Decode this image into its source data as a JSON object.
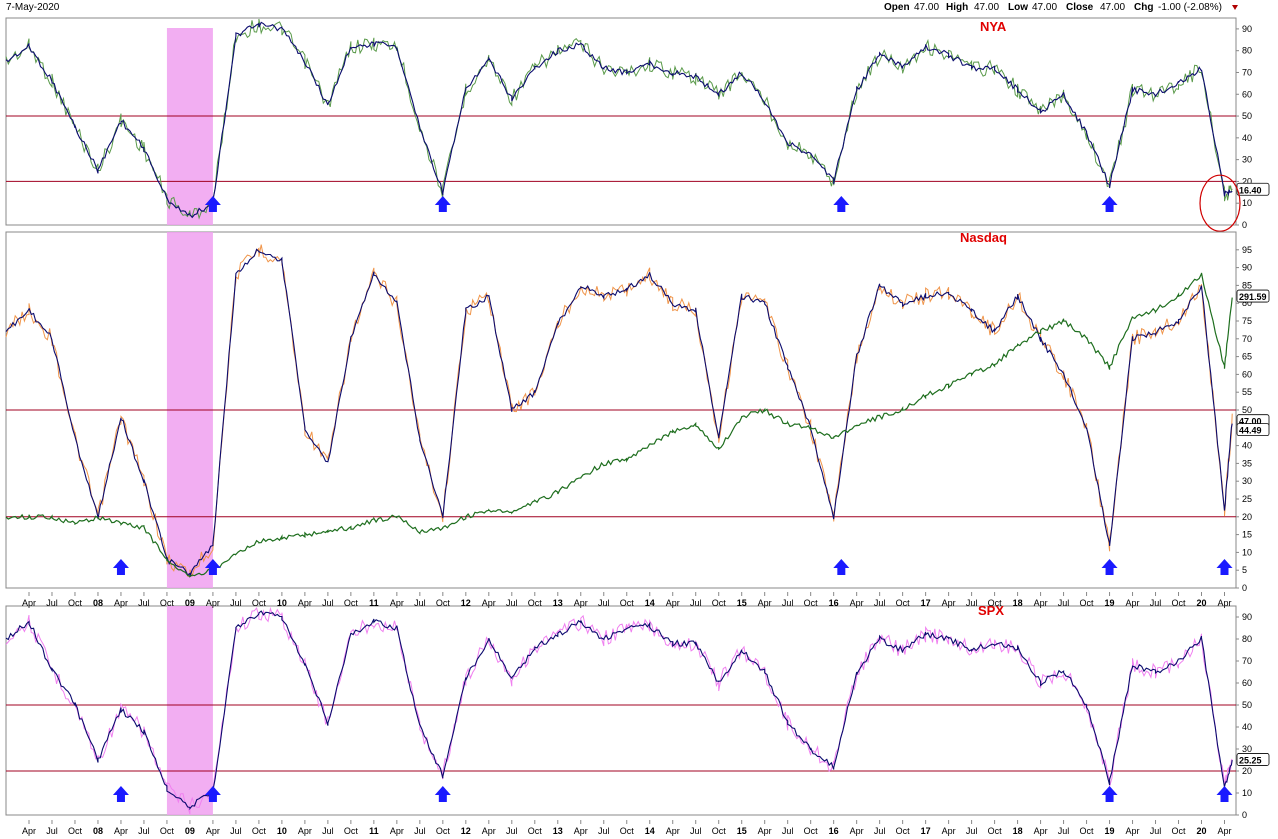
{
  "header": {
    "date": "7-May-2020",
    "open_label": "Open",
    "open_value": "47.00",
    "high_label": "High",
    "high_value": "47.00",
    "low_label": "Low",
    "low_value": "47.00",
    "close_label": "Close",
    "close_value": "47.00",
    "chg_label": "Chg",
    "chg_value": "-1.00 (-2.08%)"
  },
  "colors": {
    "navy": "#0b0b6e",
    "nya_raw": "#5a9a4a",
    "nasdaq_raw": "#f0954a",
    "spx_raw": "#f080f0",
    "comp_index": "#1e6e1e",
    "hline": "#a00020",
    "highlight": "#f0a0f0",
    "arrow": "#1a1aff",
    "title": "#e00000"
  },
  "x_axis": {
    "labels": [
      "Apr",
      "Jul",
      "Oct",
      "08",
      "Apr",
      "Jul",
      "Oct",
      "09",
      "Apr",
      "Jul",
      "Oct",
      "10",
      "Apr",
      "Jul",
      "Oct",
      "11",
      "Apr",
      "Jul",
      "Oct",
      "12",
      "Apr",
      "Jul",
      "Oct",
      "13",
      "Apr",
      "Jul",
      "Oct",
      "14",
      "Apr",
      "Jul",
      "Oct",
      "15",
      "Apr",
      "Jul",
      "Oct",
      "16",
      "Apr",
      "Jul",
      "Oct",
      "17",
      "Apr",
      "Jul",
      "Oct",
      "18",
      "Apr",
      "Jul",
      "Oct",
      "19",
      "Apr",
      "Jul",
      "Oct",
      "20",
      "Apr"
    ]
  },
  "chart_data": [
    {
      "type": "line",
      "title": "NYA",
      "ylim": [
        0,
        95
      ],
      "y_ticks": [
        "0",
        "10",
        "20",
        "30",
        "40",
        "50",
        "60",
        "70",
        "80",
        "90"
      ],
      "hlines": [
        20,
        50
      ],
      "last_value_label": "16.40",
      "highlight_range": [
        "Oct 08",
        "Apr 09"
      ],
      "buy_arrows": [
        "Apr 09",
        "Oct 11",
        "Feb 16",
        "Jan 19"
      ],
      "x": [
        "Jan 07",
        "Apr 07",
        "Jul 07",
        "Oct 07",
        "Jan 08",
        "Apr 08",
        "Jul 08",
        "Oct 08",
        "Jan 09",
        "Apr 09",
        "Jul 09",
        "Oct 09",
        "Jan 10",
        "Apr 10",
        "Jul 10",
        "Oct 10",
        "Jan 11",
        "Apr 11",
        "Jul 11",
        "Oct 11",
        "Jan 12",
        "Apr 12",
        "Jul 12",
        "Oct 12",
        "Jan 13",
        "Apr 13",
        "Jul 13",
        "Oct 13",
        "Jan 14",
        "Apr 14",
        "Jul 14",
        "Oct 14",
        "Jan 15",
        "Apr 15",
        "Jul 15",
        "Oct 15",
        "Jan 16",
        "Apr 16",
        "Jul 16",
        "Oct 16",
        "Jan 17",
        "Apr 17",
        "Jul 17",
        "Oct 17",
        "Jan 18",
        "Apr 18",
        "Jul 18",
        "Oct 18",
        "Jan 19",
        "Apr 19",
        "Jul 19",
        "Oct 19",
        "Jan 20",
        "Apr 20",
        "May 20"
      ],
      "series": [
        {
          "values": [
            75,
            82,
            66,
            45,
            25,
            48,
            35,
            12,
            4,
            10,
            87,
            92,
            90,
            75,
            55,
            82,
            83,
            82,
            45,
            15,
            62,
            76,
            58,
            72,
            80,
            83,
            72,
            70,
            74,
            70,
            68,
            60,
            70,
            57,
            38,
            32,
            20,
            62,
            78,
            73,
            82,
            78,
            72,
            72,
            62,
            52,
            60,
            42,
            18,
            62,
            60,
            65,
            72,
            14,
            16.4
          ]
        }
      ]
    },
    {
      "type": "line",
      "title": "Nasdaq",
      "ylim": [
        0,
        100
      ],
      "y_ticks": [
        "0",
        "5",
        "10",
        "15",
        "20",
        "25",
        "30",
        "35",
        "40",
        "45",
        "50",
        "55",
        "60",
        "65",
        "70",
        "75",
        "80",
        "85",
        "90",
        "95"
      ],
      "hlines": [
        20,
        50
      ],
      "last_value_label": "47.00",
      "secondary_value_label": "44.49",
      "comp_value_label": "291.59",
      "highlight_range": [
        "Oct 08",
        "Apr 09"
      ],
      "buy_arrows": [
        "Apr 08",
        "Apr 09",
        "Feb 16",
        "Jan 19",
        "Apr 20"
      ],
      "x": [
        "Jan 07",
        "Apr 07",
        "Jul 07",
        "Oct 07",
        "Jan 08",
        "Apr 08",
        "Jul 08",
        "Oct 08",
        "Jan 09",
        "Apr 09",
        "Jul 09",
        "Oct 09",
        "Jan 10",
        "Apr 10",
        "Jul 10",
        "Oct 10",
        "Jan 11",
        "Apr 11",
        "Jul 11",
        "Oct 11",
        "Jan 12",
        "Apr 12",
        "Jul 12",
        "Oct 12",
        "Jan 13",
        "Apr 13",
        "Jul 13",
        "Oct 13",
        "Jan 14",
        "Apr 14",
        "Jul 14",
        "Oct 14",
        "Jan 15",
        "Apr 15",
        "Jul 15",
        "Oct 15",
        "Jan 16",
        "Apr 16",
        "Jul 16",
        "Oct 16",
        "Jan 17",
        "Apr 17",
        "Jul 17",
        "Oct 17",
        "Jan 18",
        "Apr 18",
        "Jul 18",
        "Oct 18",
        "Jan 19",
        "Apr 19",
        "Jul 19",
        "Oct 19",
        "Jan 20",
        "Apr 20",
        "May 20"
      ],
      "series": [
        {
          "values": [
            72,
            78,
            70,
            42,
            20,
            48,
            30,
            8,
            4,
            12,
            88,
            95,
            92,
            45,
            35,
            70,
            88,
            80,
            42,
            20,
            78,
            82,
            50,
            55,
            74,
            85,
            82,
            84,
            88,
            80,
            78,
            42,
            82,
            80,
            62,
            45,
            20,
            65,
            85,
            80,
            82,
            83,
            78,
            72,
            82,
            70,
            60,
            45,
            12,
            70,
            72,
            75,
            85,
            22,
            47
          ]
        },
        {
          "values": [
            20,
            20,
            20,
            18,
            20,
            18,
            17,
            8,
            3,
            5,
            10,
            13,
            14,
            15,
            16,
            17,
            19,
            20,
            16,
            17,
            20,
            22,
            21,
            24,
            27,
            31,
            35,
            36,
            40,
            44,
            46,
            39,
            48,
            50,
            46,
            45,
            42,
            46,
            48,
            50,
            54,
            57,
            60,
            63,
            68,
            72,
            75,
            70,
            62,
            76,
            78,
            82,
            88,
            62,
            82
          ]
        }
      ]
    },
    {
      "type": "line",
      "title": "SPX",
      "ylim": [
        0,
        95
      ],
      "y_ticks": [
        "0",
        "10",
        "20",
        "30",
        "40",
        "50",
        "60",
        "70",
        "80",
        "90"
      ],
      "hlines": [
        20,
        50
      ],
      "last_value_label": "25.25",
      "highlight_range": [
        "Oct 08",
        "Apr 09"
      ],
      "buy_arrows": [
        "Apr 08",
        "Apr 09",
        "Oct 11",
        "Jan 19",
        "Apr 20"
      ],
      "x": [
        "Jan 07",
        "Apr 07",
        "Jul 07",
        "Oct 07",
        "Jan 08",
        "Apr 08",
        "Jul 08",
        "Oct 08",
        "Jan 09",
        "Apr 09",
        "Jul 09",
        "Oct 09",
        "Jan 10",
        "Apr 10",
        "Jul 10",
        "Oct 10",
        "Jan 11",
        "Apr 11",
        "Jul 11",
        "Oct 11",
        "Jan 12",
        "Apr 12",
        "Jul 12",
        "Oct 12",
        "Jan 13",
        "Apr 13",
        "Jul 13",
        "Oct 13",
        "Jan 14",
        "Apr 14",
        "Jul 14",
        "Oct 14",
        "Jan 15",
        "Apr 15",
        "Jul 15",
        "Oct 15",
        "Jan 16",
        "Apr 16",
        "Jul 16",
        "Oct 16",
        "Jan 17",
        "Apr 17",
        "Jul 17",
        "Oct 17",
        "Jan 18",
        "Apr 18",
        "Jul 18",
        "Oct 18",
        "Jan 19",
        "Apr 19",
        "Jul 19",
        "Oct 19",
        "Jan 20",
        "Apr 20",
        "May 20"
      ],
      "series": [
        {
          "values": [
            80,
            88,
            66,
            50,
            25,
            48,
            38,
            12,
            4,
            10,
            85,
            92,
            90,
            68,
            42,
            82,
            88,
            85,
            40,
            18,
            62,
            80,
            62,
            76,
            82,
            88,
            80,
            85,
            86,
            78,
            78,
            60,
            75,
            65,
            42,
            30,
            22,
            65,
            80,
            75,
            82,
            80,
            75,
            78,
            76,
            60,
            66,
            50,
            15,
            68,
            65,
            70,
            80,
            12,
            25.25
          ]
        }
      ]
    }
  ]
}
